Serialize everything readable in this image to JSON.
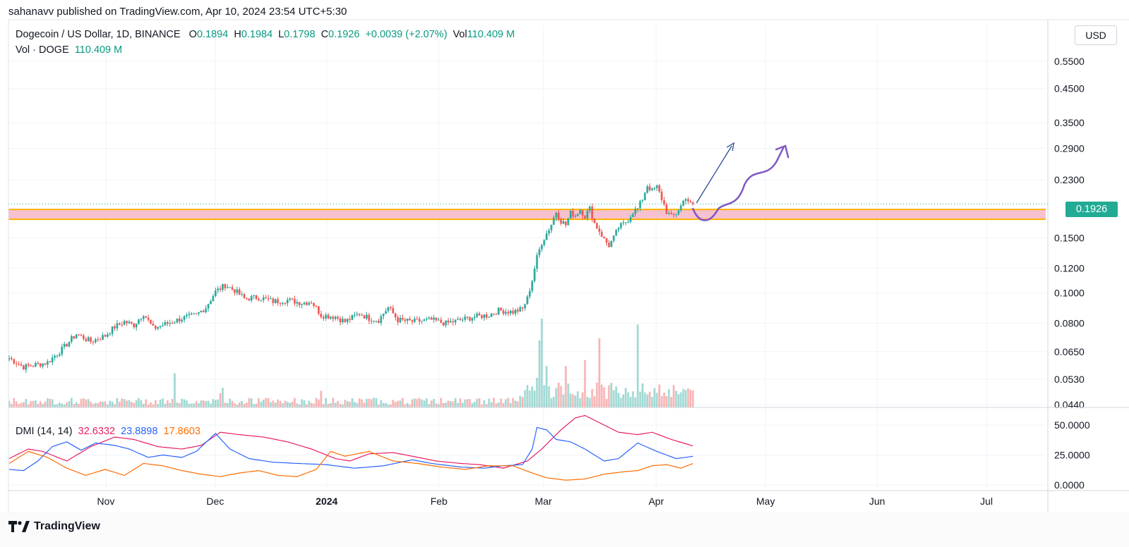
{
  "header": {
    "published": "sahanavv published on TradingView.com, Apr 10, 2024 23:54 UTC+5:30"
  },
  "legend": {
    "symbol": "Dogecoin / US Dollar, 1D, BINANCE",
    "o_label": "O",
    "o_value": "0.1894",
    "h_label": "H",
    "h_value": "0.1984",
    "l_label": "L",
    "l_value": "0.1798",
    "c_label": "C",
    "c_value": "0.1926",
    "change": "+0.0039 (+2.07%)",
    "vol_label": "Vol",
    "vol_value": "110.409 M",
    "vol_line_label": "Vol · DOGE",
    "vol_line_value": "110.409 M"
  },
  "dmi_legend": {
    "label": "DMI (14, 14)",
    "adx": "32.6332",
    "plus_di": "23.8898",
    "minus_di": "17.8603"
  },
  "currency": "USD",
  "last_price": "0.1926",
  "footer": {
    "brand": "TradingView"
  },
  "colors": {
    "up": "#26a69a",
    "down": "#ef5350",
    "adx": "#e91e63",
    "plus_di": "#2962ff",
    "minus_di": "#ff6d00",
    "zone_fill": "#f7b6c8",
    "zone_border": "#ffb300",
    "drawing_line": "#1e3f8c",
    "drawing_curve": "#7e57c2"
  },
  "chart_data": {
    "type": "candlestick",
    "price_axis": {
      "scale": "log",
      "ticks": [
        0.55,
        0.45,
        0.35,
        0.29,
        0.23,
        0.15,
        0.12,
        0.1,
        0.08,
        0.065,
        0.053,
        0.044
      ],
      "labels": [
        "0.5500",
        "0.4500",
        "0.3500",
        "0.2900",
        "0.2300",
        "0.1500",
        "0.1200",
        "0.1000",
        "0.0800",
        "0.0650",
        "0.0530",
        "0.0440"
      ]
    },
    "time_axis": {
      "labels": [
        "Nov",
        "Dec",
        "2024",
        "Feb",
        "Mar",
        "Apr",
        "May",
        "Jun",
        "Jul"
      ]
    },
    "dmi_axis": {
      "ticks": [
        50,
        25,
        0
      ],
      "labels": [
        "50.0000",
        "25.0000",
        "0.0000"
      ]
    },
    "support_zone": {
      "low": 0.172,
      "high": 0.185
    },
    "last_close": 0.1926,
    "waypoints": [
      [
        0,
        0.062
      ],
      [
        6,
        0.058
      ],
      [
        16,
        0.06
      ],
      [
        22,
        0.066
      ],
      [
        28,
        0.074
      ],
      [
        34,
        0.07
      ],
      [
        40,
        0.073
      ],
      [
        44,
        0.078
      ],
      [
        48,
        0.081
      ],
      [
        52,
        0.079
      ],
      [
        56,
        0.086
      ],
      [
        60,
        0.077
      ],
      [
        64,
        0.079
      ],
      [
        72,
        0.083
      ],
      [
        78,
        0.085
      ],
      [
        82,
        0.09
      ],
      [
        86,
        0.101
      ],
      [
        90,
        0.106
      ],
      [
        94,
        0.102
      ],
      [
        98,
        0.096
      ],
      [
        104,
        0.097
      ],
      [
        110,
        0.094
      ],
      [
        116,
        0.095
      ],
      [
        122,
        0.093
      ],
      [
        126,
        0.094
      ],
      [
        130,
        0.085
      ],
      [
        136,
        0.084
      ],
      [
        140,
        0.081
      ],
      [
        146,
        0.086
      ],
      [
        150,
        0.083
      ],
      [
        154,
        0.082
      ],
      [
        158,
        0.09
      ],
      [
        162,
        0.082
      ],
      [
        168,
        0.081
      ],
      [
        176,
        0.082
      ],
      [
        182,
        0.08
      ],
      [
        188,
        0.082
      ],
      [
        194,
        0.084
      ],
      [
        200,
        0.085
      ],
      [
        204,
        0.088
      ],
      [
        210,
        0.087
      ],
      [
        214,
        0.089
      ],
      [
        216,
        0.096
      ],
      [
        218,
        0.11
      ],
      [
        220,
        0.13
      ],
      [
        222,
        0.145
      ],
      [
        224,
        0.155
      ],
      [
        226,
        0.166
      ],
      [
        228,
        0.182
      ],
      [
        230,
        0.17
      ],
      [
        232,
        0.165
      ],
      [
        234,
        0.18
      ],
      [
        236,
        0.177
      ],
      [
        238,
        0.185
      ],
      [
        240,
        0.176
      ],
      [
        242,
        0.186
      ],
      [
        244,
        0.167
      ],
      [
        246,
        0.158
      ],
      [
        248,
        0.148
      ],
      [
        250,
        0.142
      ],
      [
        252,
        0.15
      ],
      [
        254,
        0.162
      ],
      [
        256,
        0.166
      ],
      [
        258,
        0.172
      ],
      [
        260,
        0.182
      ],
      [
        262,
        0.186
      ],
      [
        264,
        0.2
      ],
      [
        266,
        0.221
      ],
      [
        268,
        0.212
      ],
      [
        270,
        0.218
      ],
      [
        272,
        0.2
      ],
      [
        274,
        0.182
      ],
      [
        276,
        0.175
      ],
      [
        278,
        0.18
      ],
      [
        280,
        0.19
      ],
      [
        282,
        0.203
      ],
      [
        284,
        0.192
      ],
      [
        285,
        0.1926
      ]
    ],
    "volume_spikes": {
      "220": 300,
      "221": 680,
      "222": 900,
      "224": 420,
      "246": 700,
      "262": 840,
      "232": 420,
      "240": 480
    },
    "dmi_waypoints": {
      "adx": [
        [
          0,
          22
        ],
        [
          8,
          30
        ],
        [
          14,
          28
        ],
        [
          24,
          20
        ],
        [
          34,
          32
        ],
        [
          44,
          40
        ],
        [
          52,
          38
        ],
        [
          62,
          32
        ],
        [
          72,
          30
        ],
        [
          80,
          33
        ],
        [
          88,
          44
        ],
        [
          96,
          42
        ],
        [
          106,
          40
        ],
        [
          116,
          36
        ],
        [
          126,
          30
        ],
        [
          136,
          22
        ],
        [
          142,
          20
        ],
        [
          150,
          26
        ],
        [
          160,
          27
        ],
        [
          168,
          24
        ],
        [
          178,
          20
        ],
        [
          188,
          18
        ],
        [
          196,
          17
        ],
        [
          206,
          14
        ],
        [
          216,
          20
        ],
        [
          222,
          30
        ],
        [
          230,
          46
        ],
        [
          236,
          56
        ],
        [
          240,
          58
        ],
        [
          246,
          52
        ],
        [
          254,
          44
        ],
        [
          262,
          42
        ],
        [
          268,
          44
        ],
        [
          276,
          38
        ],
        [
          285,
          32.6
        ]
      ],
      "plus_di": [
        [
          0,
          13
        ],
        [
          6,
          12
        ],
        [
          12,
          20
        ],
        [
          18,
          32
        ],
        [
          24,
          36
        ],
        [
          30,
          29
        ],
        [
          36,
          35
        ],
        [
          44,
          33
        ],
        [
          50,
          30
        ],
        [
          58,
          23
        ],
        [
          64,
          25
        ],
        [
          72,
          23
        ],
        [
          78,
          28
        ],
        [
          86,
          43
        ],
        [
          92,
          30
        ],
        [
          100,
          22
        ],
        [
          110,
          19
        ],
        [
          120,
          18
        ],
        [
          132,
          17
        ],
        [
          144,
          14
        ],
        [
          156,
          16
        ],
        [
          168,
          21
        ],
        [
          176,
          18
        ],
        [
          188,
          15
        ],
        [
          198,
          14
        ],
        [
          206,
          16
        ],
        [
          214,
          17
        ],
        [
          218,
          30
        ],
        [
          220,
          48
        ],
        [
          224,
          46
        ],
        [
          228,
          38
        ],
        [
          234,
          36
        ],
        [
          240,
          30
        ],
        [
          248,
          20
        ],
        [
          254,
          22
        ],
        [
          262,
          35
        ],
        [
          270,
          28
        ],
        [
          278,
          22
        ],
        [
          285,
          23.9
        ]
      ],
      "minus_di": [
        [
          0,
          18
        ],
        [
          8,
          28
        ],
        [
          16,
          23
        ],
        [
          24,
          14
        ],
        [
          32,
          8
        ],
        [
          40,
          13
        ],
        [
          48,
          8
        ],
        [
          56,
          18
        ],
        [
          64,
          16
        ],
        [
          72,
          12
        ],
        [
          80,
          9
        ],
        [
          88,
          7
        ],
        [
          96,
          10
        ],
        [
          104,
          12
        ],
        [
          112,
          8
        ],
        [
          120,
          7
        ],
        [
          128,
          13
        ],
        [
          134,
          28
        ],
        [
          140,
          24
        ],
        [
          150,
          28
        ],
        [
          160,
          20
        ],
        [
          170,
          18
        ],
        [
          180,
          15
        ],
        [
          190,
          13
        ],
        [
          200,
          16
        ],
        [
          210,
          16
        ],
        [
          218,
          10
        ],
        [
          224,
          6
        ],
        [
          232,
          4
        ],
        [
          240,
          5
        ],
        [
          248,
          9
        ],
        [
          256,
          11
        ],
        [
          262,
          12
        ],
        [
          268,
          16
        ],
        [
          274,
          17
        ],
        [
          280,
          14
        ],
        [
          285,
          17.9
        ]
      ]
    }
  }
}
